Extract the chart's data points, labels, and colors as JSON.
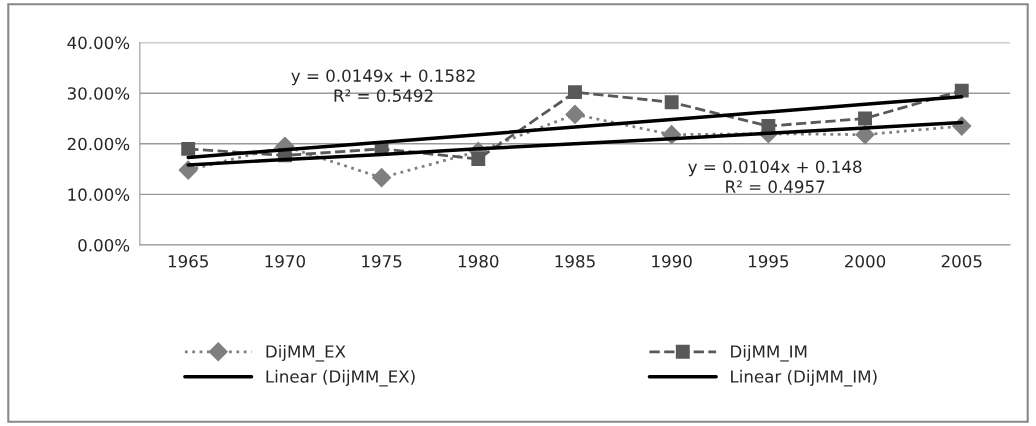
{
  "chart_data": {
    "type": "line",
    "categories": [
      "1965",
      "1970",
      "1975",
      "1980",
      "1985",
      "1990",
      "1995",
      "2000",
      "2005"
    ],
    "series": [
      {
        "name": "DijMM_EX",
        "color": "#7f7f7f",
        "marker": "diamond",
        "line_style": "dotted",
        "values": [
          0.148,
          0.195,
          0.133,
          0.185,
          0.258,
          0.218,
          0.22,
          0.218,
          0.235
        ]
      },
      {
        "name": "DijMM_IM",
        "color": "#595959",
        "marker": "square",
        "line_style": "dashed",
        "values": [
          0.19,
          0.177,
          0.19,
          0.17,
          0.302,
          0.282,
          0.235,
          0.25,
          0.305
        ]
      },
      {
        "name": "Linear (DijMM_EX)",
        "color": "#000000",
        "marker": "none",
        "line_style": "solid",
        "values": [
          0.158,
          0.169,
          0.179,
          0.19,
          0.2,
          0.21,
          0.221,
          0.231,
          0.242
        ]
      },
      {
        "name": "Linear (DijMM_IM)",
        "color": "#000000",
        "marker": "none",
        "line_style": "solid",
        "values": [
          0.173,
          0.188,
          0.203,
          0.218,
          0.233,
          0.248,
          0.263,
          0.278,
          0.293
        ]
      }
    ],
    "ylim": [
      0,
      0.4
    ],
    "yticks": [
      {
        "value": 0,
        "label": "0.00%"
      },
      {
        "value": 0.1,
        "label": "10.00%"
      },
      {
        "value": 0.2,
        "label": "20.00%"
      },
      {
        "value": 0.3,
        "label": "30.00%"
      },
      {
        "value": 0.4,
        "label": "40.00%"
      }
    ],
    "grid": "y",
    "legend": "bottom",
    "annotations": [
      "y = 0.0149x + 0.1582\nR² = 0.5492",
      "y = 0.0104x + 0.148\nR² = 0.4957"
    ]
  }
}
